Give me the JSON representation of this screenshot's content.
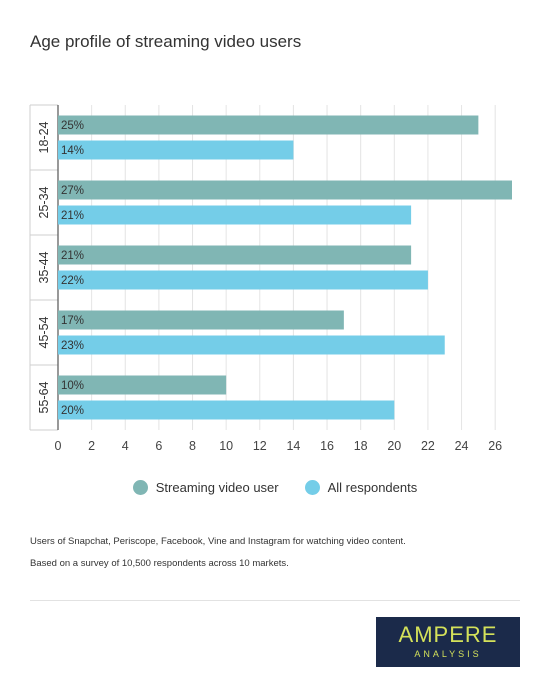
{
  "chart_data": {
    "type": "bar",
    "orientation": "horizontal",
    "title": "Age profile of streaming video users",
    "categories": [
      "18-24",
      "25-34",
      "35-44",
      "45-54",
      "55-64"
    ],
    "series": [
      {
        "name": "Streaming video user",
        "values": [
          25,
          27,
          21,
          17,
          10
        ],
        "labels": [
          "25%",
          "27%",
          "21%",
          "17%",
          "10%"
        ],
        "color": "#80b6b4"
      },
      {
        "name": "All respondents",
        "values": [
          14,
          21,
          22,
          23,
          20
        ],
        "labels": [
          "14%",
          "21%",
          "22%",
          "23%",
          "20%"
        ],
        "color": "#74cde8"
      }
    ],
    "xticks": [
      "0",
      "2",
      "4",
      "6",
      "8",
      "10",
      "12",
      "14",
      "16",
      "18",
      "20",
      "22",
      "24",
      "26"
    ],
    "xlim": [
      0,
      27
    ],
    "grid": true,
    "legend_position": "bottom"
  },
  "notes": [
    "Users of Snapchat, Periscope, Facebook, Vine and Instagram for watching video content.",
    "Based on a survey of 10,500 respondents across 10 markets."
  ],
  "logo": {
    "main": "AMPERE",
    "sub": "ANALYSIS",
    "bg_color": "#1b2a4a",
    "text_color": "#d4e15a"
  }
}
